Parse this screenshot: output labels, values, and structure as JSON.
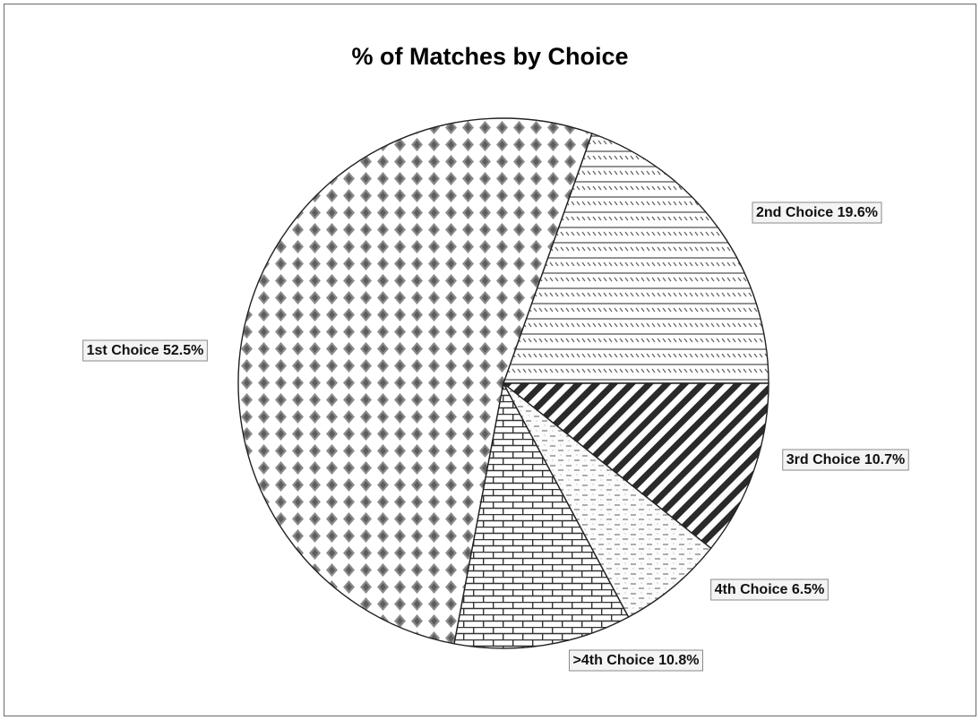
{
  "chart_data": {
    "type": "pie",
    "title": "% of Matches by Choice",
    "slices": [
      {
        "name": "1st Choice",
        "value": 52.5,
        "label": "1st Choice 52.5%",
        "pattern": "diamonds"
      },
      {
        "name": "2nd Choice",
        "value": 19.6,
        "label": "2nd Choice 19.6%",
        "pattern": "hatched-lines"
      },
      {
        "name": "3rd Choice",
        "value": 10.7,
        "label": "3rd Choice 10.7%",
        "pattern": "dark-diagonal"
      },
      {
        "name": "4th Choice",
        "value": 6.5,
        "label": "4th Choice 6.5%",
        "pattern": "dashes"
      },
      {
        "name": ">4th Choice",
        "value": 10.8,
        "label": ">4th Choice 10.8%",
        "pattern": "bricks"
      }
    ],
    "legend": "none"
  }
}
